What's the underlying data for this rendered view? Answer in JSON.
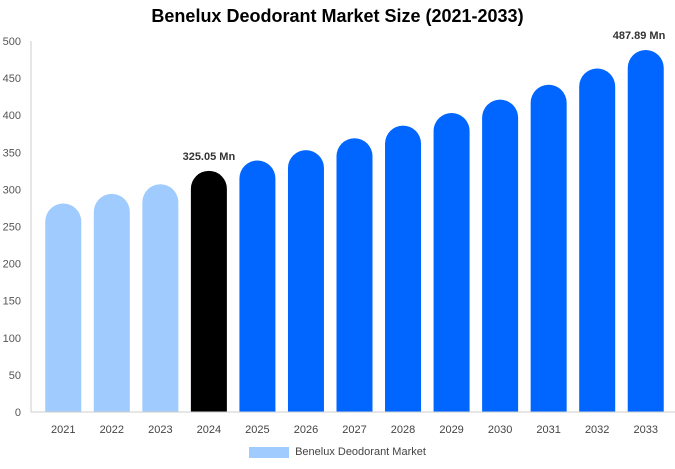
{
  "chart_data": {
    "type": "bar",
    "title": "Benelux Deodorant Market Size (2021-2033)",
    "xlabel": "",
    "ylabel": "",
    "categories": [
      "2021",
      "2022",
      "2023",
      "2024",
      "2025",
      "2026",
      "2027",
      "2028",
      "2029",
      "2030",
      "2031",
      "2032",
      "2033"
    ],
    "series": [
      {
        "name": "Benelux Deodorant Market",
        "values": [
          281,
          294,
          307,
          325.05,
          339,
          353,
          369,
          386,
          403,
          421,
          441,
          463,
          487.89
        ]
      }
    ],
    "ylim": [
      0,
      500
    ],
    "yticks": [
      0,
      50,
      100,
      150,
      200,
      250,
      300,
      350,
      400,
      450,
      500
    ],
    "grid": false,
    "legend_position": "bottom",
    "data_labels": [
      {
        "category": "2024",
        "text": "325.05 Mn"
      },
      {
        "category": "2033",
        "text": "487.89 Mn"
      }
    ],
    "colors": {
      "historical": "#9fcbff",
      "base_year": "#000000",
      "forecast": "#0066ff",
      "axis": "#cccccc"
    },
    "bar_color_groups": [
      "historical",
      "historical",
      "historical",
      "base_year",
      "forecast",
      "forecast",
      "forecast",
      "forecast",
      "forecast",
      "forecast",
      "forecast",
      "forecast",
      "forecast"
    ]
  }
}
